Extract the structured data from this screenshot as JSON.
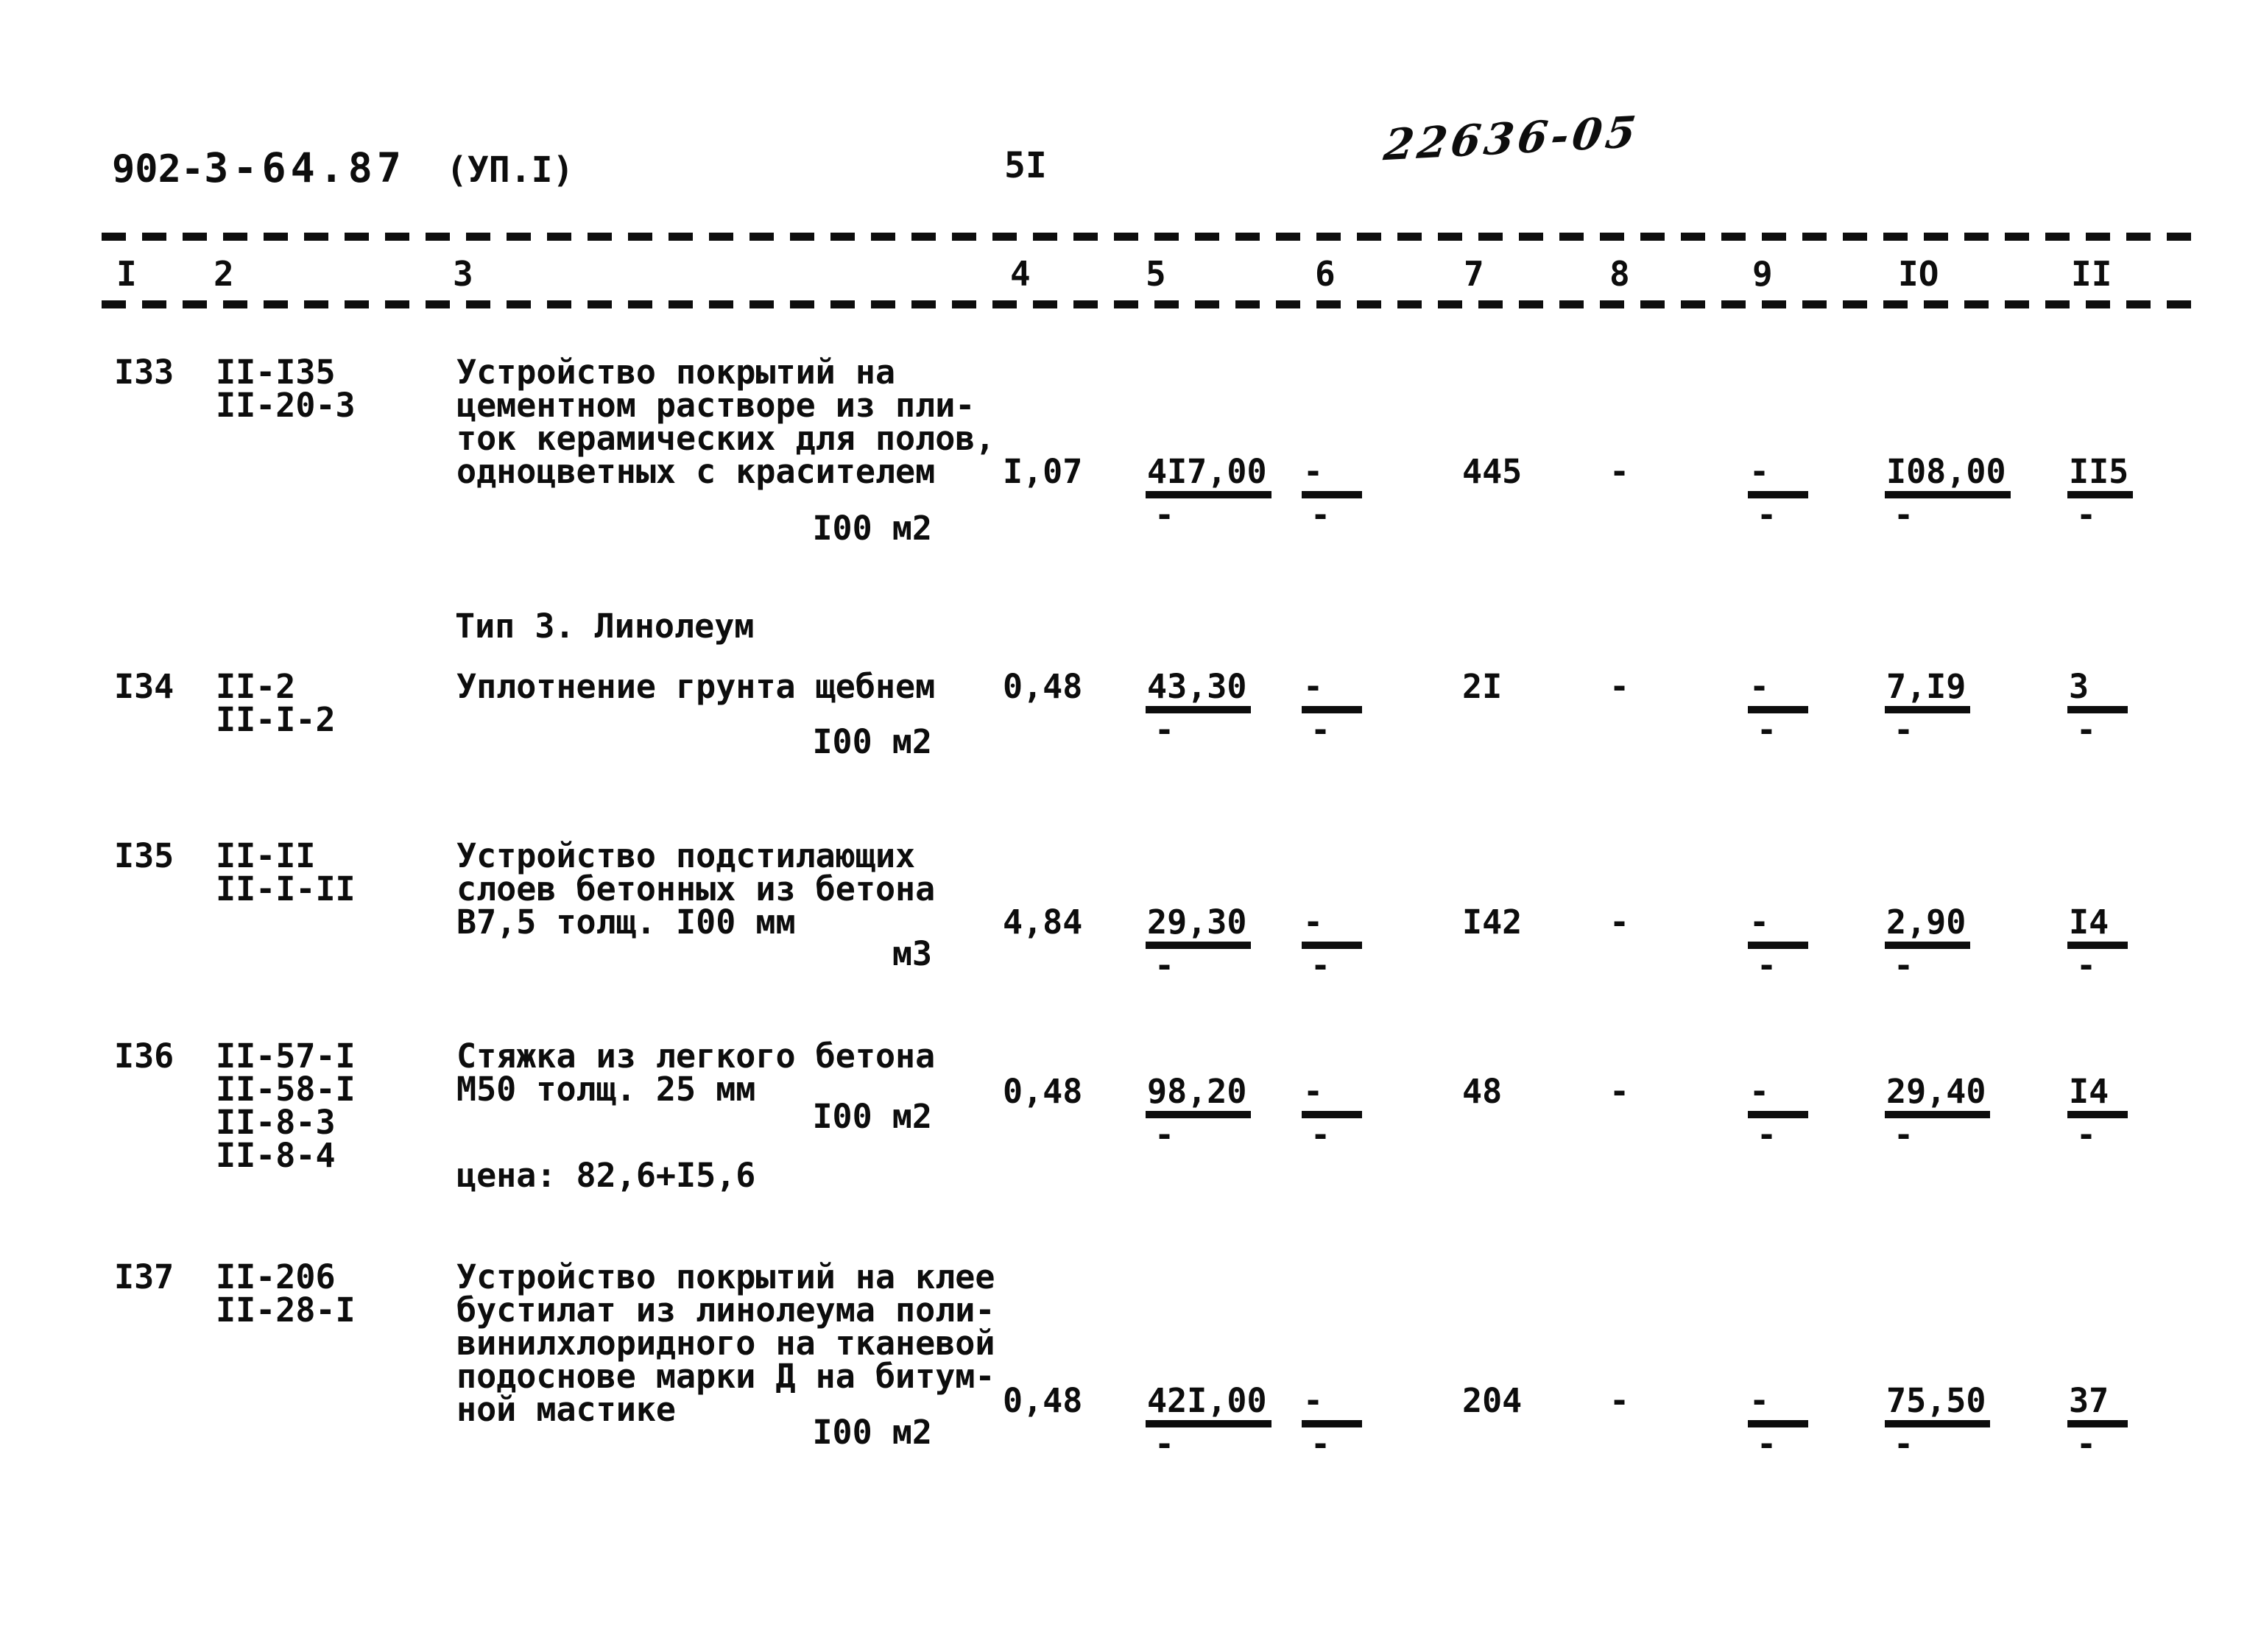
{
  "page": {
    "doc_number_prefix": "902-",
    "doc_number_suffix": "3-64.87",
    "section_ref": "(УП.I)",
    "page_number": "5I",
    "handwritten_stamp": "22636-05"
  },
  "table": {
    "column_numbers": [
      "I",
      "2",
      "3",
      "4",
      "5",
      "6",
      "7",
      "8",
      "9",
      "IO",
      "II"
    ],
    "section_heading": "Тип 3. Линолеум",
    "rows": [
      {
        "id": "I33",
        "codes": [
          "II-I35",
          "II-20-3"
        ],
        "desc_lines": [
          "Устройство покрытий на",
          "цементном растворе из пли-",
          "ток керамических для полов,",
          "одноцветных с красителем"
        ],
        "unit": "I00 м2",
        "note": "",
        "c4": "I,07",
        "c5": {
          "top": "4I7,00",
          "bot": "-"
        },
        "c6": {
          "top": "-",
          "bot": "-"
        },
        "c7": "445",
        "c8": "-",
        "c9": {
          "top": "-",
          "bot": "-"
        },
        "c10": {
          "top": "I08,00",
          "bot": "-"
        },
        "c11": {
          "top": "II5",
          "bot": "-"
        }
      },
      {
        "id": "I34",
        "codes": [
          "II-2",
          "II-I-2"
        ],
        "desc_lines": [
          "Уплотнение грунта щебнем"
        ],
        "unit": "I00 м2",
        "note": "",
        "c4": "0,48",
        "c5": {
          "top": "43,30",
          "bot": "-"
        },
        "c6": {
          "top": "-",
          "bot": "-"
        },
        "c7": "2I",
        "c8": "-",
        "c9": {
          "top": "-",
          "bot": "-"
        },
        "c10": {
          "top": "7,I9",
          "bot": "-"
        },
        "c11": {
          "top": "3",
          "bot": "-"
        }
      },
      {
        "id": "I35",
        "codes": [
          "II-II",
          "II-I-II"
        ],
        "desc_lines": [
          "Устройство подстилающих",
          "слоев бетонных из бетона",
          "В7,5 толщ. I00 мм"
        ],
        "unit": "м3",
        "note": "",
        "c4": "4,84",
        "c5": {
          "top": "29,30",
          "bot": "-"
        },
        "c6": {
          "top": "-",
          "bot": "-"
        },
        "c7": "I42",
        "c8": "-",
        "c9": {
          "top": "-",
          "bot": "-"
        },
        "c10": {
          "top": "2,90",
          "bot": "-"
        },
        "c11": {
          "top": "I4",
          "bot": "-"
        }
      },
      {
        "id": "I36",
        "codes": [
          "II-57-I",
          "II-58-I",
          "II-8-3",
          "II-8-4"
        ],
        "desc_lines": [
          "Стяжка из легкого бетона",
          "М50 толщ. 25 мм"
        ],
        "unit": "I00 м2",
        "note": "цена: 82,6+I5,6",
        "c4": "0,48",
        "c5": {
          "top": "98,20",
          "bot": "-"
        },
        "c6": {
          "top": "-",
          "bot": "-"
        },
        "c7": "48",
        "c8": "-",
        "c9": {
          "top": "-",
          "bot": "-"
        },
        "c10": {
          "top": "29,40",
          "bot": "-"
        },
        "c11": {
          "top": "I4",
          "bot": "-"
        }
      },
      {
        "id": "I37",
        "codes": [
          "II-206",
          "II-28-I"
        ],
        "desc_lines": [
          "Устройство покрытий на клее",
          "бустилат из линолеума поли-",
          "винилхлоридного на тканевой",
          "подоснове марки Д на битум-",
          "ной мастике"
        ],
        "unit": "I00 м2",
        "note": "",
        "c4": "0,48",
        "c5": {
          "top": "42I,00",
          "bot": "-"
        },
        "c6": {
          "top": "-",
          "bot": "-"
        },
        "c7": "204",
        "c8": "-",
        "c9": {
          "top": "-",
          "bot": "-"
        },
        "c10": {
          "top": "75,50",
          "bot": "-"
        },
        "c11": {
          "top": "37",
          "bot": "-"
        }
      }
    ]
  }
}
